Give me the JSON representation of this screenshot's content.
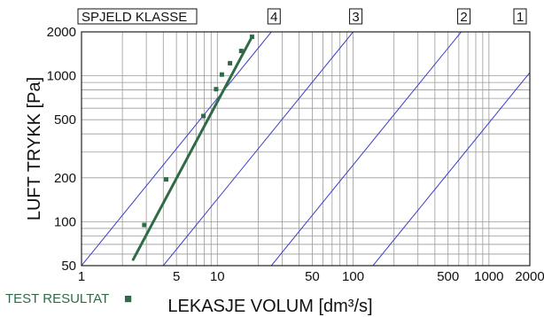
{
  "chart_data": {
    "type": "scatter",
    "title": "",
    "xlabel": "LEKASJE VOLUM [dm³/s]",
    "ylabel": "LUFT TRYKK [Pa]",
    "x_scale": "log",
    "y_scale": "log",
    "xlim": [
      1,
      2000
    ],
    "ylim": [
      50,
      2000
    ],
    "x_ticks": [
      {
        "value": 1,
        "label": "1"
      },
      {
        "value": 5,
        "label": "5"
      },
      {
        "value": 10,
        "label": "10"
      },
      {
        "value": 50,
        "label": "50"
      },
      {
        "value": 100,
        "label": "100"
      },
      {
        "value": 500,
        "label": "500"
      },
      {
        "value": 1000,
        "label": "1000"
      },
      {
        "value": 2000,
        "label": "2000"
      }
    ],
    "y_ticks": [
      {
        "value": 50,
        "label": "50"
      },
      {
        "value": 100,
        "label": "100"
      },
      {
        "value": 200,
        "label": "200"
      },
      {
        "value": 500,
        "label": "500"
      },
      {
        "value": 1000,
        "label": "1000"
      },
      {
        "value": 2000,
        "label": "2000"
      }
    ],
    "grid": true,
    "class_header": "SPJELD KLASSE",
    "class_lines": [
      {
        "label": "4",
        "points": [
          [
            1.0,
            50
          ],
          [
            25.0,
            2000
          ]
        ]
      },
      {
        "label": "3",
        "points": [
          [
            4.0,
            50
          ],
          [
            100.0,
            2000
          ]
        ]
      },
      {
        "label": "2",
        "points": [
          [
            25.0,
            50
          ],
          [
            625.0,
            2000
          ]
        ]
      },
      {
        "label": "1",
        "points": [
          [
            140.0,
            50
          ],
          [
            3500.0,
            2000
          ]
        ]
      }
    ],
    "test_points": [
      {
        "x": 2.9,
        "y": 95
      },
      {
        "x": 4.2,
        "y": 195
      },
      {
        "x": 7.9,
        "y": 530
      },
      {
        "x": 9.8,
        "y": 810
      },
      {
        "x": 10.8,
        "y": 1020
      },
      {
        "x": 12.4,
        "y": 1220
      },
      {
        "x": 15.0,
        "y": 1480
      },
      {
        "x": 18.0,
        "y": 1850
      }
    ],
    "fit_line": [
      [
        2.4,
        55
      ],
      [
        18.0,
        1850
      ]
    ],
    "legend": {
      "label": "TEST RESULTAT",
      "marker": "■",
      "placement": "bottom-left"
    },
    "colors": {
      "class_lines": "#3a3ec8",
      "test": "#2e6b46",
      "grid": "#9a9a9a",
      "axis": "#222222"
    }
  }
}
